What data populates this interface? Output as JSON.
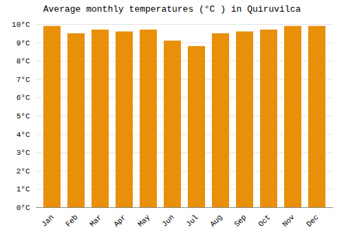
{
  "chart_data": {
    "type": "bar",
    "title": "Average monthly temperatures (°C ) in Quiruvilca",
    "categories": [
      "Jan",
      "Feb",
      "Mar",
      "Apr",
      "May",
      "Jun",
      "Jul",
      "Aug",
      "Sep",
      "Oct",
      "Nov",
      "Dec"
    ],
    "values": [
      9.9,
      9.5,
      9.7,
      9.6,
      9.7,
      9.1,
      8.8,
      9.5,
      9.6,
      9.7,
      9.9,
      9.9
    ],
    "color": "#E8900A",
    "ylim": [
      0,
      10
    ],
    "yticks": [
      {
        "value": 0,
        "label": "0°C"
      },
      {
        "value": 1,
        "label": "1°C"
      },
      {
        "value": 2,
        "label": "2°C"
      },
      {
        "value": 3,
        "label": "3°C"
      },
      {
        "value": 4,
        "label": "4°C"
      },
      {
        "value": 5,
        "label": "5°C"
      },
      {
        "value": 6,
        "label": "6°C"
      },
      {
        "value": 7,
        "label": "7°C"
      },
      {
        "value": 8,
        "label": "8°C"
      },
      {
        "value": 9,
        "label": "9°C"
      },
      {
        "value": 10,
        "label": "10°C"
      }
    ],
    "grid": true
  }
}
